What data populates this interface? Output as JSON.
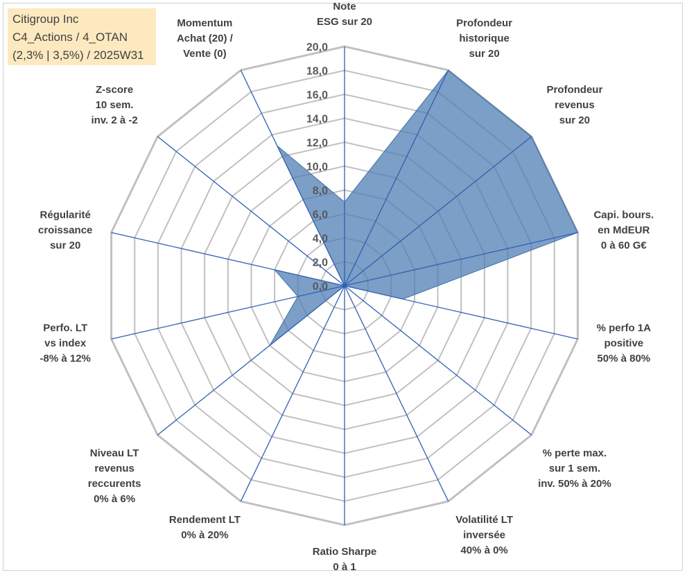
{
  "info": {
    "line1": "Citigroup Inc",
    "line2": "C4_Actions / 4_OTAN",
    "line3": "(2,3% | 3,5%) / 2025W31"
  },
  "colors": {
    "fill": "#4f7fb3",
    "stroke": "#3f6fa8",
    "spoke": "#2f5fb3",
    "grid": "#c0c0c0"
  },
  "chart_data": {
    "type": "radar",
    "ylim": [
      0,
      20
    ],
    "ticks": [
      "0,0",
      "2,0",
      "4,0",
      "6,0",
      "8,0",
      "10,0",
      "12,0",
      "14,0",
      "16,0",
      "18,0",
      "20,0"
    ],
    "grid": true,
    "axes": [
      [
        "Note",
        "ESG sur 20"
      ],
      [
        "Profondeur",
        "historique",
        "sur 20"
      ],
      [
        "Profondeur",
        "revenus",
        "sur 20"
      ],
      [
        "Capi. bours.",
        "en MdEUR",
        "0 à 60 G€"
      ],
      [
        "% perfo 1A",
        "positive",
        "50% à 80%"
      ],
      [
        "% perte max.",
        "sur 1 sem.",
        "inv. 50% à 20%"
      ],
      [
        "Volatilité LT",
        "inversée",
        "40% à 0%"
      ],
      [
        "Ratio Sharpe",
        "0 à 1"
      ],
      [
        "Rendement LT",
        "0% à 20%"
      ],
      [
        "Niveau LT",
        "revenus",
        "reccurents",
        "0% à 6%"
      ],
      [
        "Perfo. LT",
        "vs index",
        "-8% à 12%"
      ],
      [
        "Régularité",
        "croissance",
        "sur 20"
      ],
      [
        "Z-score",
        "10 sem.",
        "inv. 2 à -2"
      ],
      [
        "Momentum",
        "Achat (20) /",
        "Vente (0)"
      ]
    ],
    "series": [
      {
        "values": [
          7.0,
          20.0,
          20.0,
          20.0,
          5.0,
          0.0,
          0.0,
          0.0,
          0.0,
          8.0,
          4.0,
          6.0,
          0.0,
          13.0
        ]
      }
    ]
  }
}
